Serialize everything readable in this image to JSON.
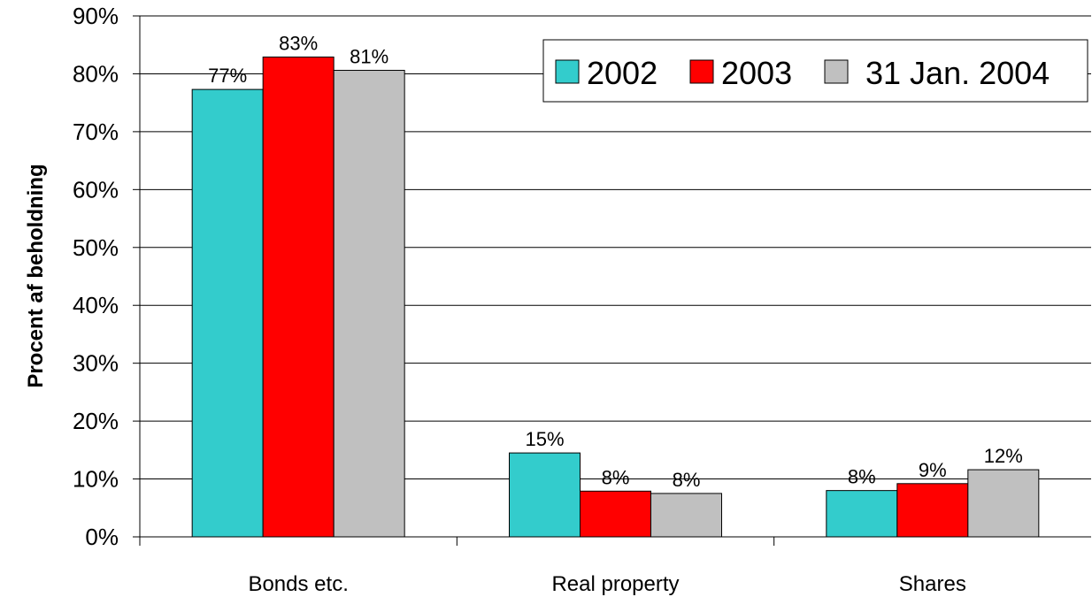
{
  "chart_data": {
    "type": "bar",
    "title": "",
    "xlabel": "",
    "ylabel": "Procent af beholdning",
    "categories": [
      "Bonds etc.",
      "Real property",
      "Shares"
    ],
    "series": [
      {
        "name": "2002",
        "values": [
          77.3,
          14.5,
          8.0
        ],
        "labels": [
          "77%",
          "15%",
          "8%"
        ],
        "color": "#33CCCC"
      },
      {
        "name": "2003",
        "values": [
          82.9,
          7.9,
          9.2
        ],
        "labels": [
          "83%",
          "8%",
          "9%"
        ],
        "color": "#FF0000"
      },
      {
        "name": "31 Jan. 2004",
        "values": [
          80.6,
          7.5,
          11.6
        ],
        "labels": [
          "81%",
          "8%",
          "12%"
        ],
        "color": "#C0C0C0"
      }
    ],
    "ylim": [
      0,
      90
    ],
    "yticks": [
      0,
      10,
      20,
      30,
      40,
      50,
      60,
      70,
      80,
      90
    ],
    "ytick_labels": [
      "0%",
      "10%",
      "20%",
      "30%",
      "40%",
      "50%",
      "60%",
      "70%",
      "80%",
      "90%"
    ],
    "grid": true,
    "legend_position": "top-right"
  }
}
